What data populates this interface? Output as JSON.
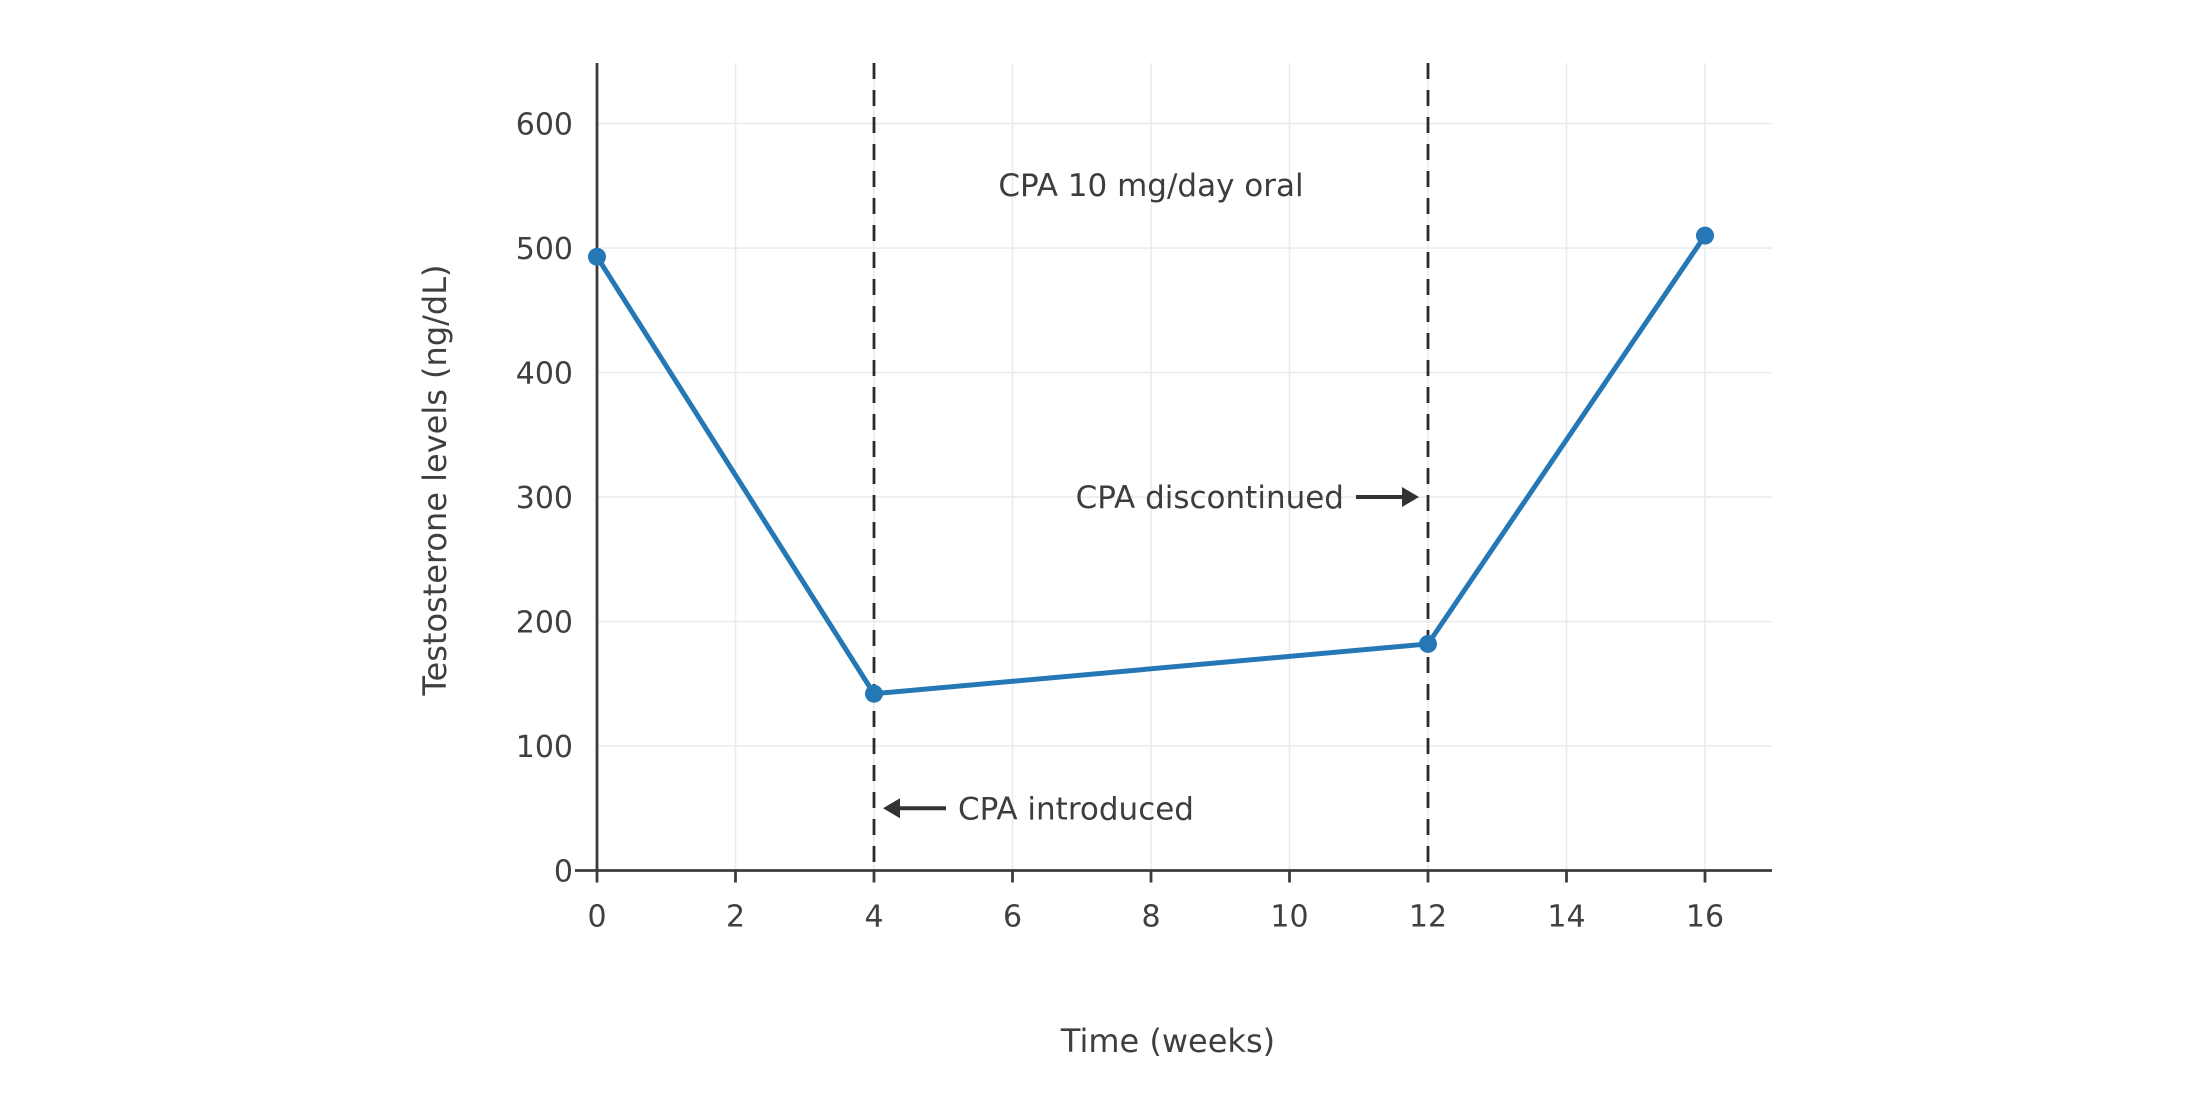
{
  "chart_data": {
    "type": "line",
    "x": [
      0,
      4,
      12,
      16
    ],
    "y": [
      493,
      142,
      182,
      510
    ],
    "title": "",
    "xlabel": "Time (weeks)",
    "ylabel": "Testosterone levels (ng/dL)",
    "xticks": [
      0,
      2,
      4,
      6,
      8,
      10,
      12,
      14,
      16
    ],
    "yticks": [
      0,
      100,
      200,
      300,
      400,
      500,
      600
    ],
    "xlim": [
      0,
      17
    ],
    "ylim": [
      0,
      640
    ],
    "grid": true,
    "legend": "none",
    "marker": "circle",
    "vlines": [
      {
        "x": 4,
        "style": "dashed"
      },
      {
        "x": 12,
        "style": "dashed"
      }
    ],
    "annotations": [
      {
        "text": "CPA 10 mg/day oral",
        "x": 8,
        "y": 550,
        "arrow": "none"
      },
      {
        "text": "CPA discontinued",
        "x": 12,
        "y": 300,
        "arrow": "right"
      },
      {
        "text": "CPA introduced",
        "x": 4,
        "y": 50,
        "arrow": "left"
      }
    ]
  },
  "colors": {
    "line": "#2577b5",
    "marker": "#2577b5",
    "axis": "#3c3c3c",
    "tick_text": "#404040",
    "annotation_text": "#3d3d3d",
    "dashed_line": "#2b2b2b",
    "arrow": "#333333",
    "grid": "#ebebeb",
    "background": "#ffffff"
  }
}
